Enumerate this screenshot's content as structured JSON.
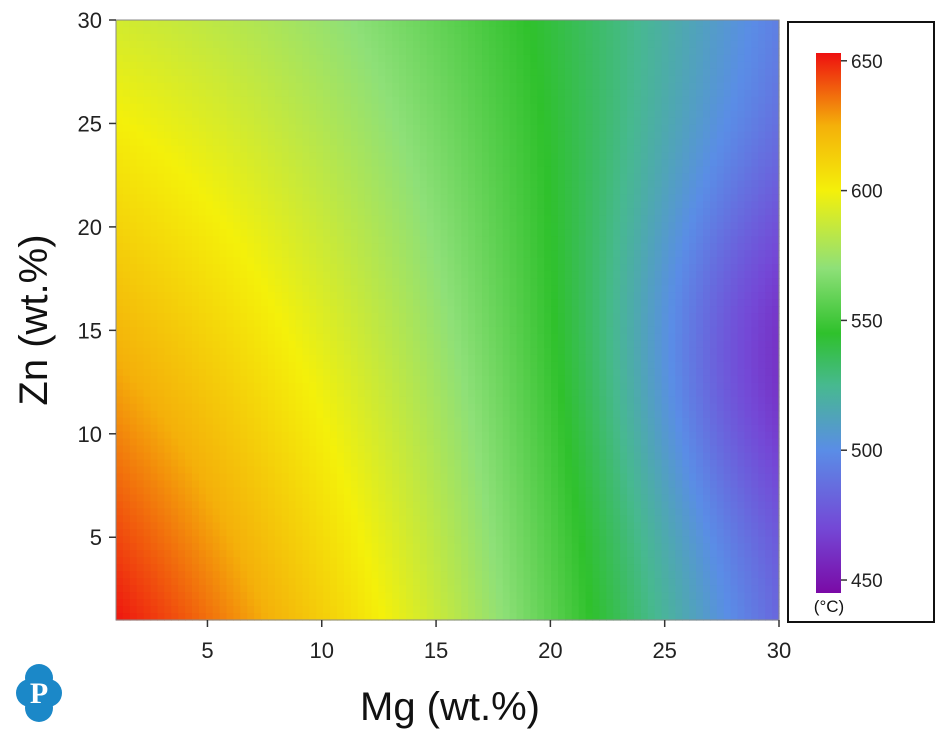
{
  "chart_data": {
    "type": "heatmap",
    "title": "",
    "xlabel": "Mg (wt.%)",
    "ylabel": "Zn (wt.%)",
    "xlim": [
      1,
      30
    ],
    "ylim": [
      1,
      30
    ],
    "xticks": [
      5,
      10,
      15,
      20,
      25,
      30
    ],
    "yticks": [
      5,
      10,
      15,
      20,
      25,
      30
    ],
    "colorbar": {
      "unit": "(°C)",
      "range": [
        445,
        653
      ],
      "ticks": [
        450,
        500,
        550,
        600,
        650
      ],
      "stops": [
        {
          "value": 445,
          "color": "#7a0aa6"
        },
        {
          "value": 470,
          "color": "#7448d6"
        },
        {
          "value": 500,
          "color": "#5a8de6"
        },
        {
          "value": 525,
          "color": "#47b98f"
        },
        {
          "value": 545,
          "color": "#2fc12c"
        },
        {
          "value": 570,
          "color": "#8ee078"
        },
        {
          "value": 600,
          "color": "#f4f00a"
        },
        {
          "value": 625,
          "color": "#f4b00a"
        },
        {
          "value": 653,
          "color": "#ee1010"
        }
      ]
    },
    "values": [
      {
        "mg": 1,
        "zn": 1,
        "t": 652
      },
      {
        "mg": 12,
        "zn": 1,
        "t": 600
      },
      {
        "mg": 30,
        "zn": 1,
        "t": 480
      },
      {
        "mg": 1,
        "zn": 30,
        "t": 605
      },
      {
        "mg": 13,
        "zn": 30,
        "t": 550
      },
      {
        "mg": 30,
        "zn": 30,
        "t": 470
      },
      {
        "mg": 29,
        "zn": 14,
        "t": 448
      }
    ]
  },
  "logo": {
    "letter": "P",
    "color": "#1b88c8"
  }
}
